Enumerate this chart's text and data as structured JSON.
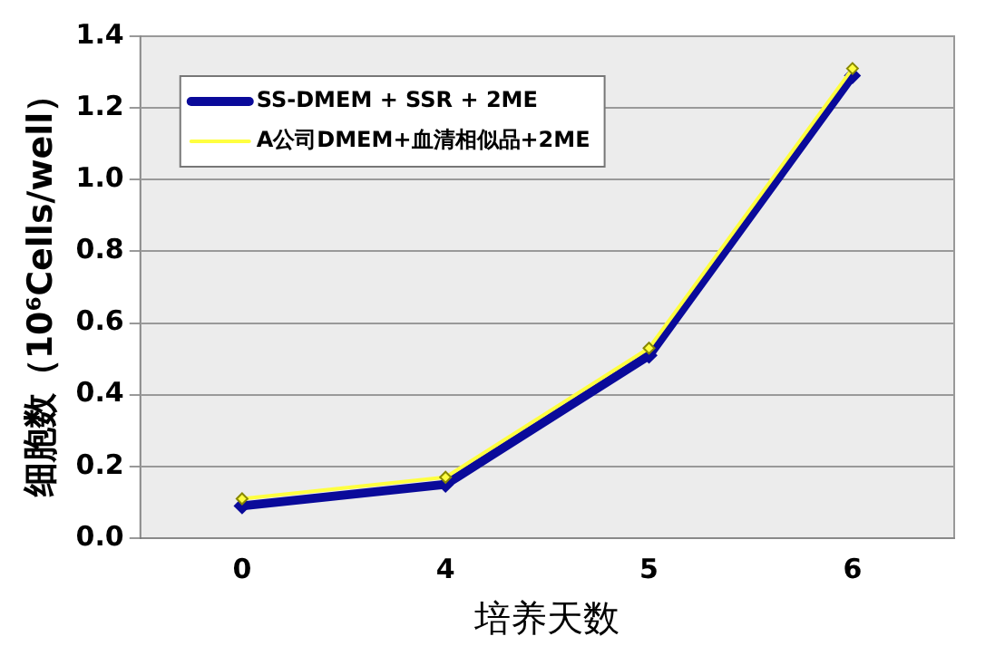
{
  "chart_data": {
    "type": "line",
    "xlabel": "培养天数",
    "ylabel": "细胞数（10⁶Cells/well）",
    "categories": [
      "0",
      "4",
      "5",
      "6"
    ],
    "series": [
      {
        "name": "SS-DMEM + SSR + 2ME",
        "color": "#0a0a9a",
        "values": [
          0.09,
          0.15,
          0.51,
          1.29
        ]
      },
      {
        "name": "A公司DMEM+血清相似品+2ME",
        "color": "#ffff40",
        "values": [
          0.11,
          0.17,
          0.53,
          1.31
        ]
      }
    ],
    "ylim": [
      0,
      1.4
    ],
    "yticks": [
      {
        "value": 0,
        "label": "0.0"
      },
      {
        "value": 0.2,
        "label": "0.2"
      },
      {
        "value": 0.4,
        "label": "0.4"
      },
      {
        "value": 0.6,
        "label": "0.6"
      },
      {
        "value": 0.8,
        "label": "0.8"
      },
      {
        "value": 1,
        "label": "1.0"
      },
      {
        "value": 1.2,
        "label": "1.2"
      },
      {
        "value": 1.4,
        "label": "1.4"
      }
    ],
    "grid": "y",
    "legend": "top left",
    "marker": "diamond",
    "line_style": "solid"
  }
}
